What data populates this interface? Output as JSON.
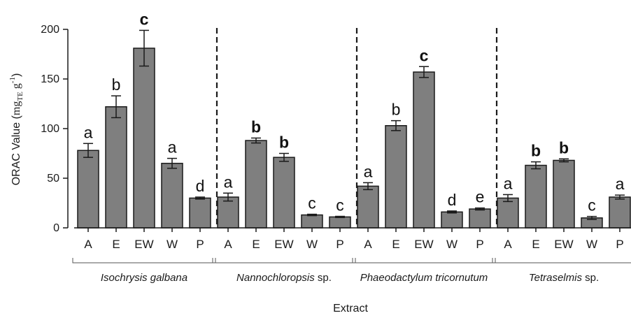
{
  "chart_data": {
    "type": "bar",
    "ylabel": {
      "prefix": "ORAC Value (",
      "unit_base": "mg",
      "unit_sub": "TE",
      "unit_g": " g",
      "unit_sup": "-1",
      "suffix": ")"
    },
    "xlabel": "Extract",
    "ylim": [
      0,
      200
    ],
    "yticks": [
      "0",
      "50",
      "100",
      "150",
      "200"
    ],
    "grid": false,
    "colors": {
      "bar": "#7f7f7f",
      "edge": "#1a1a1a"
    },
    "groups": [
      {
        "name": "Isochrysis galbana",
        "name_suffix": "",
        "categories": [
          "A",
          "E",
          "EW",
          "W",
          "P"
        ],
        "values": [
          78,
          122,
          181,
          65,
          30
        ],
        "errors": [
          7,
          11,
          18,
          5,
          1
        ],
        "letters": [
          "a",
          "b",
          "c",
          "a",
          "d"
        ],
        "bold": [
          false,
          false,
          true,
          false,
          false
        ]
      },
      {
        "name": "Nannochloropsis",
        "name_suffix": " sp.",
        "categories": [
          "A",
          "E",
          "EW",
          "W",
          "P"
        ],
        "values": [
          31,
          88,
          71,
          13,
          11
        ],
        "errors": [
          4,
          2.5,
          4,
          0.7,
          0.6
        ],
        "letters": [
          "a",
          "b",
          "b",
          "c",
          "c"
        ],
        "bold": [
          false,
          true,
          true,
          false,
          false
        ]
      },
      {
        "name": "Phaeodactylum tricornutum",
        "name_suffix": "",
        "categories": [
          "A",
          "E",
          "EW",
          "W",
          "P"
        ],
        "values": [
          42,
          103,
          157,
          16,
          19
        ],
        "errors": [
          3.5,
          5,
          5.5,
          1,
          1
        ],
        "letters": [
          "a",
          "b",
          "c",
          "d",
          "e"
        ],
        "bold": [
          false,
          false,
          true,
          false,
          false
        ]
      },
      {
        "name": "Tetraselmis",
        "name_suffix": " sp.",
        "categories": [
          "A",
          "E",
          "EW",
          "W",
          "P"
        ],
        "values": [
          30,
          63,
          68,
          10,
          31
        ],
        "errors": [
          3.5,
          3.5,
          1.5,
          1.5,
          2
        ],
        "letters": [
          "a",
          "b",
          "b",
          "c",
          "a"
        ],
        "bold": [
          false,
          true,
          true,
          false,
          false
        ]
      }
    ]
  }
}
